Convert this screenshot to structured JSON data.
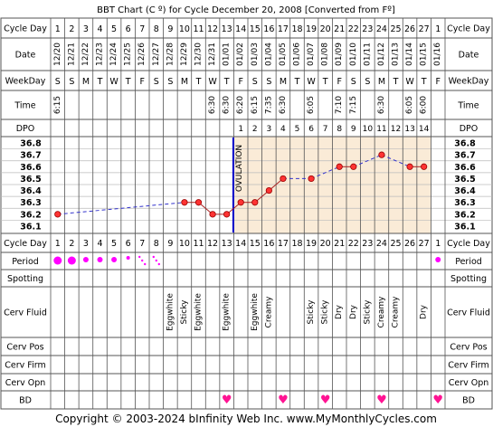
{
  "title": "BBT Chart (C º) for Cycle December 20, 2008  [Converted from Fº]",
  "footer": "Copyright © 2003-2024 bInfinity Web Inc.    www.MyMonthlyCycles.com",
  "row_labels": {
    "cycle_day": "Cycle Day",
    "date": "Date",
    "weekday": "WeekDay",
    "time": "Time",
    "dpo": "DPO",
    "period": "Period",
    "spotting": "Spotting",
    "cerv_fluid": "Cerv Fluid",
    "cerv_pos": "Cerv Pos",
    "cerv_firm": "Cerv Firm",
    "cerv_opn": "Cerv Opn",
    "bd": "BD"
  },
  "cycle_days": [
    "1",
    "2",
    "3",
    "4",
    "5",
    "6",
    "7",
    "8",
    "9",
    "10",
    "11",
    "12",
    "13",
    "14",
    "15",
    "16",
    "17",
    "18",
    "19",
    "20",
    "21",
    "22",
    "23",
    "24",
    "25",
    "26",
    "27",
    "1"
  ],
  "dates": [
    "12/20",
    "12/21",
    "12/22",
    "12/23",
    "12/24",
    "12/25",
    "12/26",
    "12/27",
    "12/28",
    "12/29",
    "12/30",
    "12/31",
    "01/01",
    "01/02",
    "01/03",
    "01/04",
    "01/05",
    "01/06",
    "01/07",
    "01/08",
    "01/09",
    "01/10",
    "01/11",
    "01/12",
    "01/13",
    "01/14",
    "01/15",
    "01/16"
  ],
  "weekdays": [
    "S",
    "S",
    "M",
    "T",
    "W",
    "T",
    "F",
    "S",
    "S",
    "M",
    "T",
    "W",
    "T",
    "F",
    "S",
    "S",
    "M",
    "T",
    "W",
    "T",
    "F",
    "S",
    "S",
    "M",
    "T",
    "W",
    "T",
    "F"
  ],
  "times": [
    "6:15",
    "",
    "",
    "",
    "",
    "",
    "",
    "",
    "",
    "",
    "",
    "6:30",
    "6:30",
    "6:20",
    "6:15",
    "7:35",
    "6:30",
    "",
    "6:05",
    "",
    "7:10",
    "7:15",
    "",
    "6:30",
    "",
    "6:05",
    "6:00",
    ""
  ],
  "dpo": [
    "",
    "",
    "",
    "",
    "",
    "",
    "",
    "",
    "",
    "",
    "",
    "",
    "",
    "1",
    "2",
    "3",
    "4",
    "5",
    "6",
    "7",
    "8",
    "9",
    "10",
    "11",
    "12",
    "13",
    "14",
    ""
  ],
  "period": [
    "heavy",
    "heavy",
    "medium",
    "medium",
    "medium",
    "light",
    "spotty",
    "spotty",
    "",
    "",
    "",
    "",
    "",
    "",
    "",
    "",
    "",
    "",
    "",
    "",
    "",
    "",
    "",
    "",
    "",
    "",
    "",
    "medium"
  ],
  "spotting": [
    "",
    "",
    "",
    "",
    "",
    "",
    "",
    "",
    "",
    "",
    "",
    "",
    "",
    "",
    "",
    "",
    "",
    "",
    "",
    "",
    "",
    "",
    "",
    "",
    "",
    "",
    "",
    ""
  ],
  "cerv_fluid": [
    "",
    "",
    "",
    "",
    "",
    "",
    "",
    "",
    "Eggwhite",
    "Sticky",
    "Eggwhite",
    "",
    "Eggwhite",
    "",
    "Eggwhite",
    "Creamy",
    "",
    "",
    "Sticky",
    "Sticky",
    "Dry",
    "Dry",
    "Sticky",
    "Creamy",
    "Creamy",
    "",
    "Dry",
    ""
  ],
  "cerv_pos": [
    "",
    "",
    "",
    "",
    "",
    "",
    "",
    "",
    "",
    "",
    "",
    "",
    "",
    "",
    "",
    "",
    "",
    "",
    "",
    "",
    "",
    "",
    "",
    "",
    "",
    "",
    "",
    ""
  ],
  "cerv_firm": [
    "",
    "",
    "",
    "",
    "",
    "",
    "",
    "",
    "",
    "",
    "",
    "",
    "",
    "",
    "",
    "",
    "",
    "",
    "",
    "",
    "",
    "",
    "",
    "",
    "",
    "",
    "",
    ""
  ],
  "cerv_opn": [
    "",
    "",
    "",
    "",
    "",
    "",
    "",
    "",
    "",
    "",
    "",
    "",
    "",
    "",
    "",
    "",
    "",
    "",
    "",
    "",
    "",
    "",
    "",
    "",
    "",
    "",
    "",
    ""
  ],
  "bd": [
    "",
    "",
    "",
    "",
    "",
    "",
    "",
    "",
    "",
    "",
    "",
    "",
    "heart",
    "",
    "",
    "",
    "heart",
    "",
    "",
    "heart",
    "",
    "",
    "",
    "heart",
    "",
    "",
    "",
    "heart"
  ],
  "colors": {
    "grid": "#555555",
    "postovulation_shade": "#faebd7",
    "ovulation_line": "#0000cc",
    "temp_line": "#aa2222",
    "temp_point": "#ff3333",
    "dash_line": "#3333cc",
    "period_dot": "#ff00ff",
    "heart": "#ff1493"
  },
  "chart_data": {
    "type": "line",
    "x_label": "Cycle Day",
    "y_ticks": [
      "36.8",
      "36.7",
      "36.6",
      "36.5",
      "36.4",
      "36.3",
      "36.2",
      "36.1"
    ],
    "ylim": [
      36.1,
      36.8
    ],
    "ovulation_day": 13,
    "ovulation_label": "OVULATION",
    "postovulation_days": [
      14,
      27
    ],
    "series": [
      {
        "values": [
          36.2,
          null,
          null,
          null,
          null,
          null,
          null,
          null,
          null,
          36.3,
          36.3,
          36.2,
          36.2,
          36.3,
          36.3,
          36.4,
          36.5,
          null,
          36.5,
          null,
          36.6,
          36.6,
          null,
          36.7,
          null,
          36.6,
          36.6,
          null
        ]
      }
    ]
  }
}
